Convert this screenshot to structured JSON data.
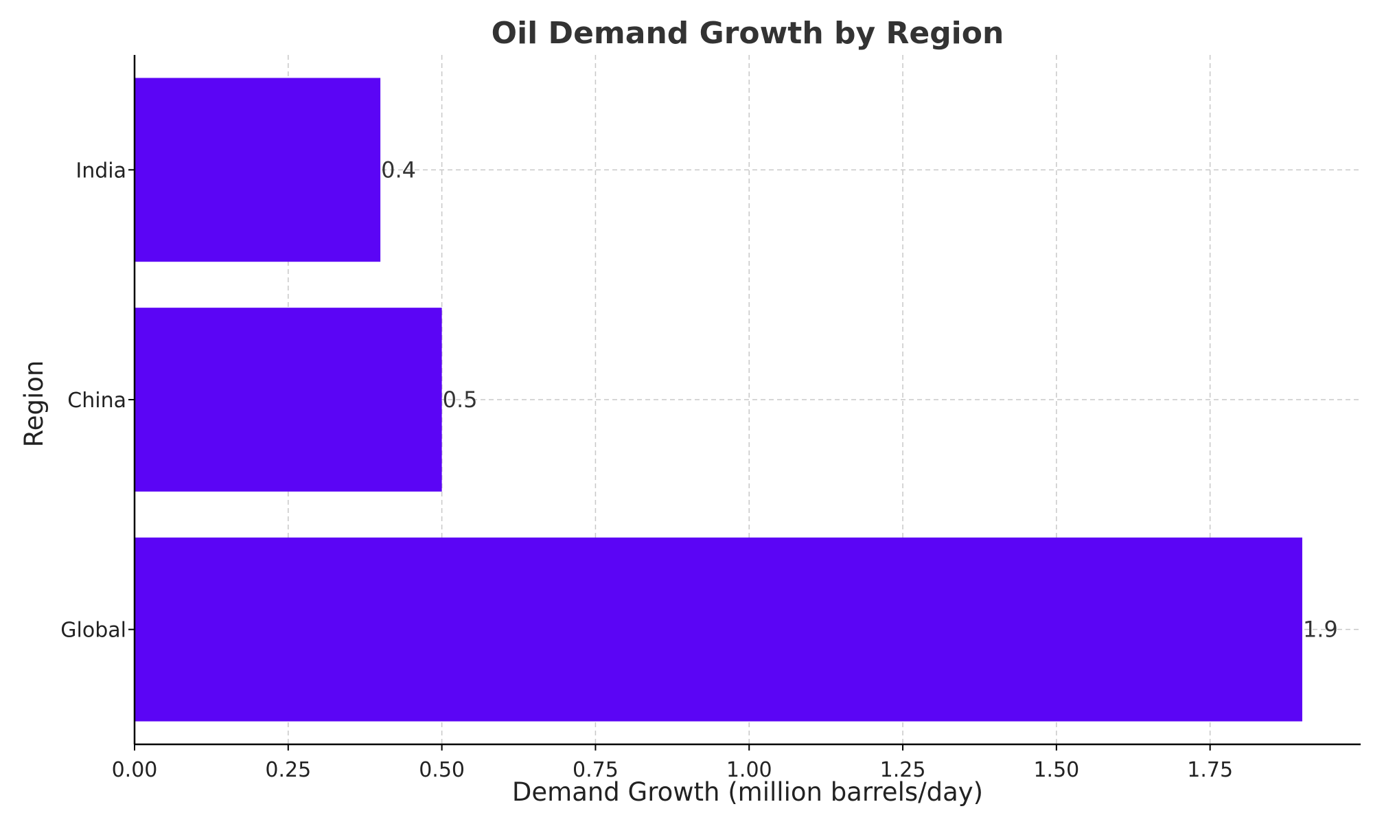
{
  "chart_data": {
    "type": "bar",
    "orientation": "horizontal",
    "title": "Oil Demand Growth by Region",
    "xlabel": "Demand Growth (million barrels/day)",
    "ylabel": "Region",
    "categories": [
      "Global",
      "China",
      "India"
    ],
    "values": [
      1.9,
      0.5,
      0.4
    ],
    "value_labels": [
      "1.9",
      "0.5",
      "0.4"
    ],
    "x_ticks": [
      0.0,
      0.25,
      0.5,
      0.75,
      1.0,
      1.25,
      1.5,
      1.75
    ],
    "x_tick_labels": [
      "0.00",
      "0.25",
      "0.50",
      "0.75",
      "1.00",
      "1.25",
      "1.50",
      "1.75"
    ],
    "xlim": [
      0,
      1.995
    ],
    "bar_color": "#5b05f5",
    "grid": true,
    "legend": "none"
  }
}
